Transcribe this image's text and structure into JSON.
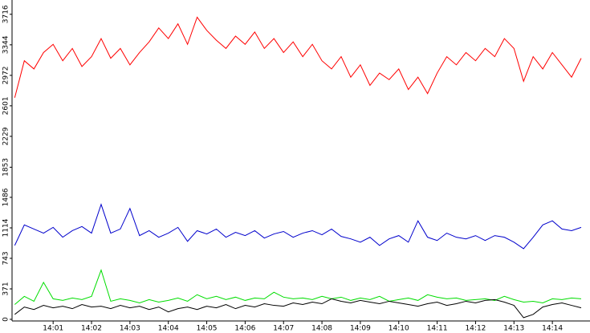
{
  "chart_data": {
    "type": "line",
    "x": [
      0,
      0.25,
      0.5,
      0.75,
      1,
      1.25,
      1.5,
      1.75,
      2,
      2.25,
      2.5,
      2.75,
      3,
      3.25,
      3.5,
      3.75,
      4,
      4.25,
      4.5,
      4.75,
      5,
      5.25,
      5.5,
      5.75,
      6,
      6.25,
      6.5,
      6.75,
      7,
      7.25,
      7.5,
      7.75,
      8,
      8.25,
      8.5,
      8.75,
      9,
      9.25,
      9.5,
      9.75,
      10,
      10.25,
      10.5,
      10.75,
      11,
      11.25,
      11.5,
      11.75,
      12,
      12.25,
      12.5,
      12.75,
      13,
      13.25,
      13.5,
      13.75,
      14,
      14.25,
      14.5,
      14.75
    ],
    "series": [
      {
        "color": "#ff0000",
        "values": [
          2700,
          3150,
          3050,
          3250,
          3350,
          3150,
          3300,
          3080,
          3200,
          3420,
          3180,
          3300,
          3100,
          3250,
          3380,
          3550,
          3420,
          3600,
          3350,
          3680,
          3520,
          3400,
          3300,
          3450,
          3350,
          3500,
          3300,
          3420,
          3250,
          3380,
          3200,
          3350,
          3150,
          3050,
          3200,
          2950,
          3100,
          2850,
          3000,
          2920,
          3050,
          2800,
          2950,
          2750,
          3000,
          3200,
          3100,
          3250,
          3150,
          3300,
          3200,
          3420,
          3300,
          2900,
          3200,
          3050,
          3250,
          3100,
          2950,
          3180
        ]
      },
      {
        "color": "#0000cc",
        "values": [
          900,
          1150,
          1100,
          1050,
          1120,
          1000,
          1080,
          1130,
          1050,
          1400,
          1050,
          1100,
          1350,
          1020,
          1080,
          1000,
          1050,
          1120,
          950,
          1080,
          1040,
          1100,
          1000,
          1060,
          1020,
          1080,
          990,
          1040,
          1070,
          1000,
          1050,
          1080,
          1030,
          1100,
          1010,
          980,
          940,
          1000,
          900,
          980,
          1020,
          940,
          1200,
          1000,
          960,
          1050,
          1000,
          980,
          1020,
          960,
          1020,
          1000,
          940,
          860,
          1000,
          1150,
          1200,
          1100,
          1080,
          1120
        ]
      },
      {
        "color": "#00dd00",
        "values": [
          180,
          280,
          220,
          450,
          250,
          230,
          260,
          240,
          280,
          600,
          220,
          250,
          230,
          200,
          240,
          210,
          230,
          260,
          220,
          300,
          250,
          280,
          240,
          270,
          230,
          260,
          250,
          330,
          270,
          250,
          260,
          240,
          280,
          250,
          270,
          230,
          260,
          240,
          280,
          220,
          240,
          260,
          230,
          300,
          270,
          250,
          260,
          230,
          240,
          250,
          230,
          280,
          240,
          210,
          220,
          200,
          250,
          240,
          260,
          250
        ]
      },
      {
        "color": "#000000",
        "values": [
          60,
          150,
          120,
          170,
          140,
          160,
          130,
          180,
          150,
          160,
          130,
          170,
          140,
          160,
          120,
          150,
          90,
          130,
          150,
          120,
          160,
          140,
          180,
          130,
          170,
          150,
          190,
          170,
          160,
          200,
          180,
          210,
          190,
          250,
          220,
          200,
          230,
          210,
          190,
          220,
          200,
          180,
          160,
          190,
          210,
          170,
          190,
          220,
          200,
          230,
          240,
          210,
          170,
          20,
          60,
          150,
          180,
          200,
          170,
          140
        ]
      }
    ],
    "xlim": [
      -0.07,
      14.98
    ],
    "xticks": [
      {
        "value": 1,
        "label": "14:01"
      },
      {
        "value": 2,
        "label": "14:02"
      },
      {
        "value": 3,
        "label": "14:03"
      },
      {
        "value": 4,
        "label": "14:04"
      },
      {
        "value": 5,
        "label": "14:05"
      },
      {
        "value": 6,
        "label": "14:06"
      },
      {
        "value": 7,
        "label": "14:07"
      },
      {
        "value": 8,
        "label": "14:08"
      },
      {
        "value": 9,
        "label": "14:09"
      },
      {
        "value": 10,
        "label": "14:10"
      },
      {
        "value": 11,
        "label": "14:11"
      },
      {
        "value": 12,
        "label": "14:12"
      },
      {
        "value": 13,
        "label": "14:13"
      },
      {
        "value": 14,
        "label": "14:14"
      }
    ],
    "ylim": [
      -20,
      3890
    ],
    "yticks": [
      0,
      371,
      743,
      1114,
      1486,
      1853,
      2229,
      2601,
      2972,
      3344,
      3716
    ]
  }
}
